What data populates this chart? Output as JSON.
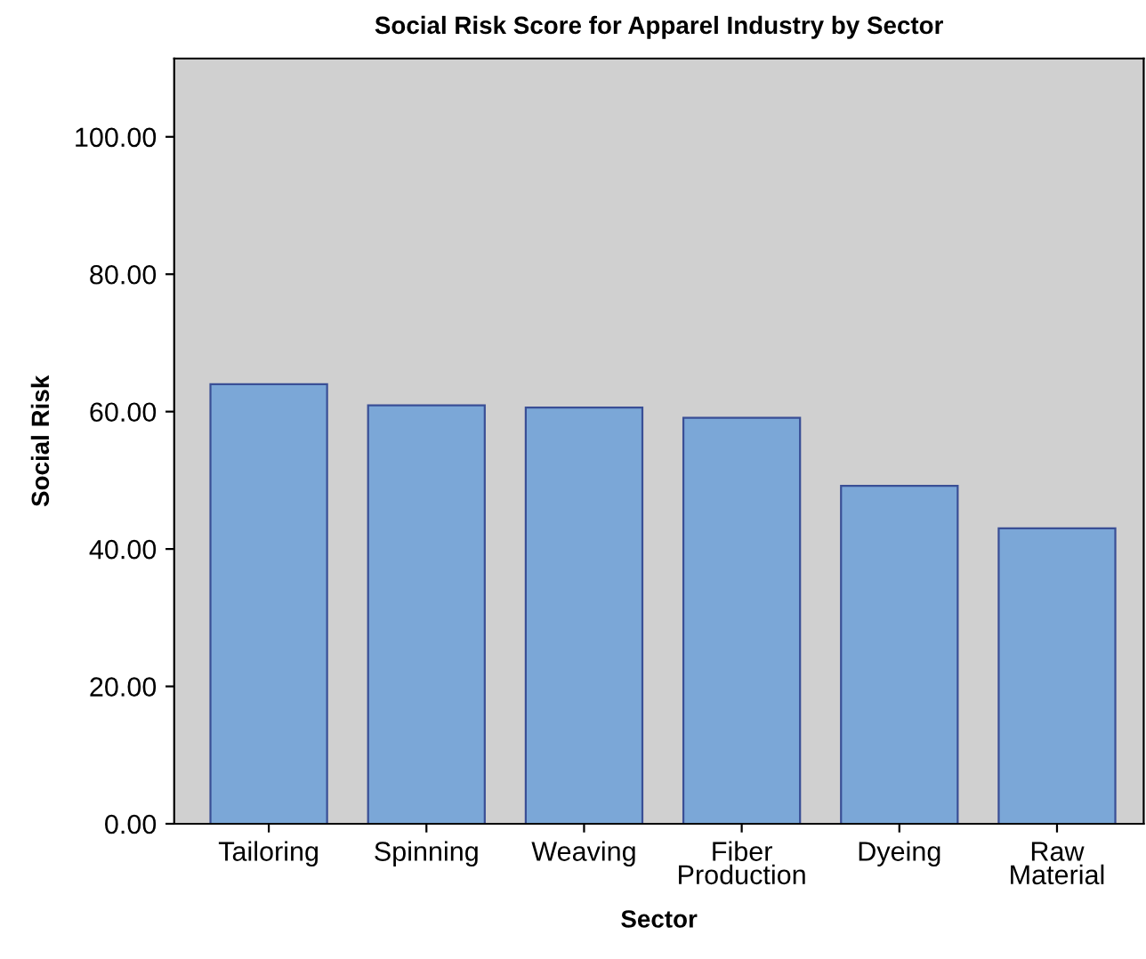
{
  "chart_data": {
    "type": "bar",
    "title": "Social Risk Score for Apparel Industry by Sector",
    "xlabel": "Sector",
    "ylabel": "Social Risk",
    "categories": [
      "Tailoring",
      "Spinning",
      "Weaving",
      "Fiber\nProduction",
      "Dyeing",
      "Raw\nMaterial"
    ],
    "values": [
      64.0,
      60.9,
      60.6,
      59.1,
      49.2,
      43.0
    ],
    "color": "#7ba7d7",
    "ylim": [
      0,
      111.4
    ],
    "yticks": [
      {
        "value": 0,
        "label": "0.00"
      },
      {
        "value": 20,
        "label": "20.00"
      },
      {
        "value": 40,
        "label": "40.00"
      },
      {
        "value": 60,
        "label": "60.00"
      },
      {
        "value": 80,
        "label": "80.00"
      },
      {
        "value": 100,
        "label": "100.00"
      }
    ],
    "grid": false
  }
}
